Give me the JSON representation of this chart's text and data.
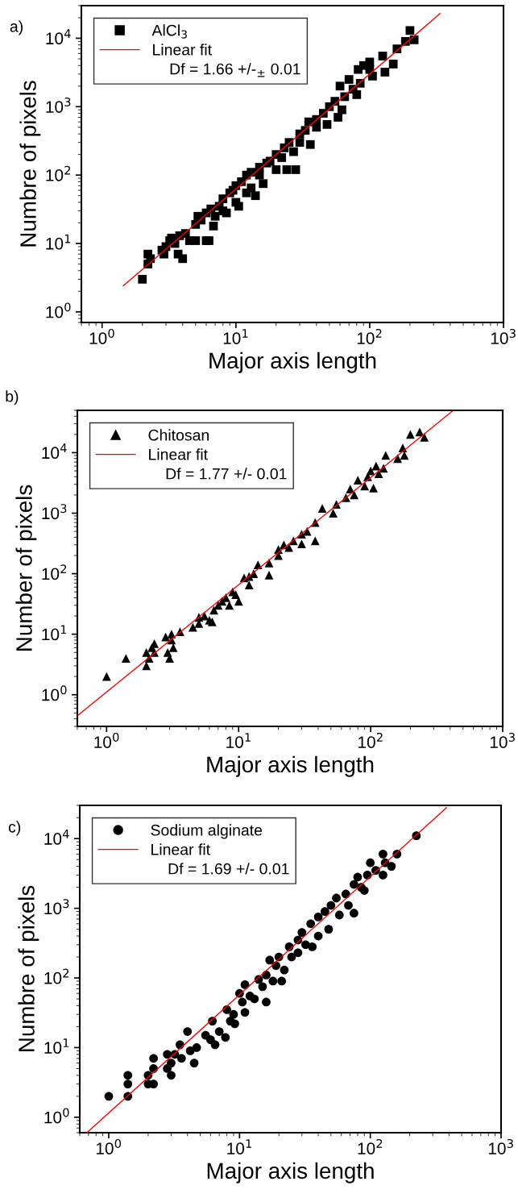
{
  "chart_data": [
    {
      "type": "scatter",
      "title": "a)",
      "xlabel": "Major axis length",
      "ylabel": "Numbre of pixels",
      "log": "xy",
      "marker": "square",
      "legend": "top left",
      "grid": false,
      "xlim": [
        0.7,
        1000
      ],
      "ylim": [
        0.7,
        30000
      ],
      "xticks": [
        {
          "value": 1,
          "label": "10$^{0}$"
        },
        {
          "value": 10,
          "label": "10$^{1}$"
        },
        {
          "value": 100,
          "label": "10$^{2}$"
        },
        {
          "value": 1000,
          "label": "10$^{3}$"
        }
      ],
      "yticks": [
        {
          "value": 1,
          "label": "10$^{0}$"
        },
        {
          "value": 10,
          "label": "10$^{1}$"
        },
        {
          "value": 100,
          "label": "10$^{2}$"
        },
        {
          "value": 1000,
          "label": "10$^{3}$"
        },
        {
          "value": 10000,
          "label": "10$^{4}$"
        }
      ],
      "annotations": [
        "Df = 1.66 +/-$_{±}$ 0.01"
      ],
      "series": [
        {
          "name": "AlCl$_{3}$",
          "color": "#000000",
          "x": [
            2,
            2.2,
            2.2,
            2.3,
            2.8,
            2.9,
            3,
            3.2,
            3.3,
            3.5,
            3.7,
            4,
            3.8,
            4.2,
            4.5,
            5,
            5,
            5.2,
            5.5,
            6,
            6.3,
            6,
            6.5,
            6.8,
            7,
            7.5,
            8,
            8,
            8.5,
            9,
            9.5,
            10,
            10,
            10.5,
            11,
            12,
            12,
            13,
            13,
            14,
            15,
            15,
            16,
            17,
            18,
            20,
            20,
            22,
            23,
            24,
            25,
            27,
            28,
            30,
            30,
            33,
            35,
            36,
            40,
            40,
            45,
            48,
            50,
            55,
            58,
            60,
            62,
            65,
            70,
            75,
            80,
            82,
            85,
            90,
            100,
            100,
            105,
            125,
            130,
            150,
            160,
            185,
            200,
            215
          ],
          "values": [
            3,
            5,
            7,
            6,
            8,
            7,
            9,
            11,
            12,
            10,
            7,
            6,
            13,
            14,
            11,
            11,
            19,
            25,
            22,
            11,
            11,
            28,
            32,
            18,
            25,
            35,
            30,
            45,
            28,
            55,
            60,
            40,
            70,
            35,
            80,
            100,
            55,
            65,
            110,
            50,
            100,
            130,
            75,
            150,
            160,
            200,
            120,
            180,
            250,
            120,
            300,
            220,
            120,
            400,
            300,
            450,
            600,
            280,
            650,
            500,
            800,
            550,
            1000,
            1200,
            700,
            2000,
            900,
            1400,
            2500,
            1800,
            1500,
            3500,
            2200,
            4000,
            4500,
            3500,
            2800,
            5500,
            3200,
            4200,
            7000,
            9000,
            13000,
            9500
          ]
        },
        {
          "name": "Linear fit",
          "type": "line",
          "color": "#ff0000",
          "marker": "none",
          "x": [
            1.44,
            336
          ],
          "values": [
            2.4,
            23000
          ]
        }
      ]
    },
    {
      "type": "scatter",
      "title": "b)",
      "xlabel": "Major axis length",
      "ylabel": "Number of pixels",
      "log": "xy",
      "marker": "triangle",
      "legend": "top left",
      "grid": false,
      "xlim": [
        0.6,
        1000
      ],
      "ylim": [
        0.3,
        50000
      ],
      "xticks": [
        {
          "value": 1,
          "label": "10$^{0}$"
        },
        {
          "value": 10,
          "label": "10$^{1}$"
        },
        {
          "value": 100,
          "label": "10$^{2}$"
        },
        {
          "value": 1000,
          "label": "10$^{3}$"
        }
      ],
      "yticks": [
        {
          "value": 1,
          "label": "10$^{0}$"
        },
        {
          "value": 10,
          "label": "10$^{1}$"
        },
        {
          "value": 100,
          "label": "10$^{2}$"
        },
        {
          "value": 1000,
          "label": "10$^{3}$"
        },
        {
          "value": 10000,
          "label": "10$^{4}$"
        }
      ],
      "annotations": [
        "Df = 1.77 +/- 0.01"
      ],
      "series": [
        {
          "name": "Chitosan",
          "color": "#000000",
          "x": [
            1,
            1.4,
            2,
            2,
            2.1,
            2.2,
            2.3,
            2.3,
            2.8,
            2.9,
            3,
            3.1,
            3.1,
            3.2,
            3.6,
            4.5,
            5,
            5,
            5.5,
            6,
            6.3,
            6.5,
            7,
            7.5,
            8,
            8.5,
            9,
            9.5,
            10,
            11,
            12,
            12,
            13,
            14,
            17,
            17,
            20,
            20,
            22,
            24,
            26,
            30,
            30,
            33,
            38,
            38,
            43,
            52,
            55,
            65,
            70,
            75,
            80,
            90,
            95,
            100,
            105,
            110,
            115,
            125,
            130,
            160,
            175,
            180,
            200,
            235,
            255
          ],
          "values": [
            2,
            4,
            3,
            5,
            4,
            6,
            7,
            5,
            9,
            5,
            4,
            10,
            8,
            6,
            11,
            13,
            15,
            19,
            20,
            17,
            16,
            25,
            30,
            35,
            40,
            30,
            50,
            45,
            35,
            85,
            65,
            90,
            100,
            140,
            150,
            95,
            200,
            250,
            300,
            270,
            350,
            450,
            310,
            500,
            700,
            350,
            1200,
            1000,
            1400,
            1800,
            2500,
            2000,
            3500,
            2800,
            4000,
            5000,
            2600,
            6000,
            4500,
            5500,
            9000,
            8000,
            12000,
            9000,
            20000,
            22000,
            18000
          ]
        },
        {
          "name": "Linear fit",
          "type": "line",
          "color": "#ff0000",
          "marker": "none",
          "x": [
            0.6,
            423
          ],
          "values": [
            0.45,
            50000
          ]
        }
      ]
    },
    {
      "type": "scatter",
      "title": "c)",
      "xlabel": "Major axis length",
      "ylabel": "Numbre of pixels",
      "log": "xy",
      "marker": "circle",
      "legend": "top left",
      "grid": false,
      "xlim": [
        0.6,
        1000
      ],
      "ylim": [
        0.6,
        30000
      ],
      "xticks": [
        {
          "value": 1,
          "label": "10$^{0}$"
        },
        {
          "value": 10,
          "label": "10$^{1}$"
        },
        {
          "value": 100,
          "label": "10$^{2}$"
        },
        {
          "value": 1000,
          "label": "10$^{3}$"
        }
      ],
      "yticks": [
        {
          "value": 1,
          "label": "10$^{0}$"
        },
        {
          "value": 10,
          "label": "10$^{1}$"
        },
        {
          "value": 100,
          "label": "10$^{2}$"
        },
        {
          "value": 1000,
          "label": "10$^{3}$"
        },
        {
          "value": 10000,
          "label": "10$^{4}$"
        }
      ],
      "annotations": [
        "Df = 1.69 +/- 0.01"
      ],
      "series": [
        {
          "name": "Sodium alginate",
          "color": "#000000",
          "x": [
            1,
            1.4,
            1.4,
            1.4,
            2,
            2,
            2.2,
            2.2,
            2.2,
            2.8,
            2.8,
            3,
            3,
            3.2,
            3.5,
            3.6,
            4,
            4.2,
            4.5,
            4.7,
            5.5,
            6,
            6.2,
            6.5,
            7,
            7.8,
            8,
            8.5,
            9,
            9.2,
            10,
            10.5,
            11,
            11,
            12,
            13,
            14,
            15,
            16,
            16,
            17,
            18,
            19,
            20,
            21,
            22,
            24,
            25,
            28,
            28,
            30,
            32,
            35,
            36,
            40,
            40,
            45,
            48,
            50,
            55,
            58,
            65,
            68,
            75,
            75,
            80,
            85,
            90,
            95,
            100,
            110,
            125,
            125,
            130,
            145,
            160,
            225
          ],
          "values": [
            2,
            2,
            3,
            4,
            3,
            4,
            3,
            5,
            7,
            8,
            5,
            4,
            6,
            8,
            11,
            7,
            17,
            9,
            6,
            10,
            15,
            13,
            24,
            11,
            17,
            14,
            35,
            24,
            30,
            22,
            60,
            45,
            32,
            80,
            55,
            50,
            95,
            75,
            45,
            110,
            180,
            90,
            150,
            200,
            90,
            130,
            280,
            200,
            230,
            350,
            450,
            300,
            600,
            280,
            750,
            400,
            900,
            500,
            1100,
            1400,
            800,
            1600,
            1100,
            850,
            2200,
            2800,
            2000,
            1800,
            3000,
            4500,
            3500,
            6000,
            3000,
            4500,
            4000,
            6000,
            11000
          ]
        },
        {
          "name": "Linear fit",
          "type": "line",
          "color": "#ff0000",
          "marker": "none",
          "x": [
            0.68,
            382
          ],
          "values": [
            0.6,
            27700
          ]
        }
      ]
    }
  ]
}
